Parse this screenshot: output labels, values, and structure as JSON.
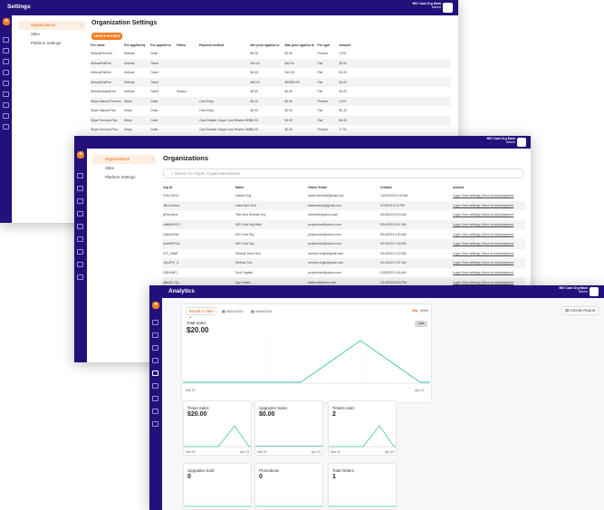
{
  "user": {
    "name": "MG Card Org Main",
    "role": "Admin"
  },
  "settings": {
    "title": "Settings",
    "nav": [
      {
        "label": "Organizations",
        "active": true
      },
      {
        "label": "Sites",
        "active": false
      },
      {
        "label": "Platform Settings",
        "active": false
      }
    ],
    "page_title": "Organization Settings",
    "create_button": "CREATE ENTRIES",
    "columns": [
      "Fee name",
      "Fee applied by",
      "Fee applied to",
      "Filters",
      "Payment method",
      "Min price applied to",
      "Max price applied to",
      "Fee type",
      "Amount"
    ],
    "rows": [
      [
        "SeltrustPercFee",
        "Seltrust",
        "Order",
        "",
        "",
        "$0.00",
        "$0.00",
        "Percent",
        "3.9%"
      ],
      [
        "SeltrustFlatFee",
        "Seltrust",
        "Ticket",
        "",
        "",
        "$10.01",
        "$40.00",
        "Flat",
        "$2.00"
      ],
      [
        "SeltrustFlatFee",
        "Seltrust",
        "Ticket",
        "",
        "",
        "$0.00",
        "$10.00",
        "Flat",
        "$1.00"
      ],
      [
        "SeltrustFlatFee",
        "Seltrust",
        "Ticket",
        "",
        "",
        "$40.01",
        "$99999.99",
        "Flat",
        "$4.00"
      ],
      [
        "SeltrustSeatedFee",
        "Seltrust",
        "Ticket",
        "Seated",
        "",
        "$0.00",
        "$0.00",
        "Flat",
        "$1.00"
      ],
      [
        "Stripe Manual Percent",
        "Stripe",
        "Order",
        "",
        "Card Entry",
        "$0.00",
        "$0.00",
        "Percent",
        "2.9%"
      ],
      [
        "Stripe Manual Flat",
        "Stripe",
        "Order",
        "",
        "Card Entry",
        "$0.00",
        "$0.00",
        "Flat",
        "$0.30"
      ],
      [
        "Stripe Terminal Flat",
        "Stripe",
        "Order",
        "",
        "Card Reader Swipe Card Reader Wifi",
        "$0.00",
        "$0.00",
        "Flat",
        "$0.05"
      ],
      [
        "Stripe Terminal Perc",
        "Stripe",
        "Order",
        "",
        "Card Reader Swipe Card Reader Wifi",
        "$0.00",
        "$0.00",
        "Percent",
        "2.7%"
      ]
    ]
  },
  "organizations": {
    "nav": [
      {
        "label": "Organizations",
        "active": true
      },
      {
        "label": "Sites",
        "active": false
      },
      {
        "label": "Platform Settings",
        "active": false
      }
    ],
    "page_title": "Organizations",
    "search_placeholder": "Search for OrgID, OrganizationName",
    "columns": [
      "Org Id",
      "Name",
      "Owner Email",
      "Created",
      "Actions"
    ],
    "action_links": "Login View settings Send invoice/payment",
    "rows": [
      [
        "FzKL1HrV2",
        "Dariels Org",
        "dariel.ramirez@gmail.com",
        "10/22/2023 6:33 AM"
      ],
      [
        "4BcLXmlUa",
        "Hand New Test",
        "testerhandy@gmail.com",
        "9/7/2023 5:16 PM"
      ],
      [
        "gPbe2yKer",
        "Test New Seltrust Org",
        "harrietc5@yahoo.com",
        "9/16/2023 5:19 AM"
      ],
      [
        "cMd4k8CEC",
        "MG Card Org Main",
        "projectuser@yahoo.com",
        "9/14/2023 5:47 AM"
      ],
      [
        "Ca6luGRcb",
        "MG Card Org",
        "projectuser@yahoo.com",
        "9/14/2023 4:40 AM"
      ],
      [
        "bccbMPFQz",
        "MG Card Org",
        "projectuser@yahoo.com",
        "9/14/2023 4:39 AM"
      ],
      [
        "CPr_Vl8dF",
        "Seltrust Team Test",
        "ammon.singh@gmail.com",
        "9/14/2023 3:22 AM"
      ],
      [
        "xQc2PVl_S",
        "Seltrust Two",
        "ammon.singh@gmail.com",
        "9/14/2023 2:57 AM"
      ],
      [
        "3QbVAl6T_",
        "Dick Prypath",
        "projectuser@yahoo.com",
        "2/28/2023 4:50 AM"
      ],
      [
        "y8ec5z-T2y",
        "App Testen",
        "tasarun@yahoo.com",
        "2/14/2023 8:03 PM"
      ]
    ]
  },
  "analytics": {
    "title": "Analytics",
    "date_filter": "Month to date",
    "start_date": "06/01/2024",
    "end_date": "06/04/2024",
    "activity_report": "Activity Report",
    "toggle_day": "Day",
    "toggle_week": "Week",
    "main_chart_toggle": "Cart",
    "cards": [
      {
        "label": "Total Sales",
        "value": "$20.00",
        "x_start": "Mar 03",
        "x_end": "Apr 03"
      },
      {
        "label": "Ticket Sales",
        "value": "$20.00",
        "x_start": "Mar 03",
        "x_end": "Apr 03"
      },
      {
        "label": "Upgrades Sales",
        "value": "$0.00",
        "x_start": "Mar 03",
        "x_end": "Apr 03"
      },
      {
        "label": "Tickets Sold",
        "value": "2",
        "x_start": "Mar 03",
        "x_end": "Apr 03"
      },
      {
        "label": "Upgrades Sold",
        "value": "0",
        "x_start": "",
        "x_end": ""
      },
      {
        "label": "Promotions",
        "value": "0",
        "x_start": "",
        "x_end": ""
      },
      {
        "label": "Total Orders",
        "value": "1",
        "x_start": "",
        "x_end": ""
      }
    ]
  },
  "colors": {
    "brand": "#24107a",
    "accent": "#f47c20",
    "line": "#3fc6a4"
  },
  "icons": [
    "plus-icon",
    "home-icon",
    "calendar-icon",
    "list-icon",
    "ticket-icon",
    "chart-icon",
    "settings-icon",
    "crown-icon",
    "chevron-right-icon"
  ]
}
